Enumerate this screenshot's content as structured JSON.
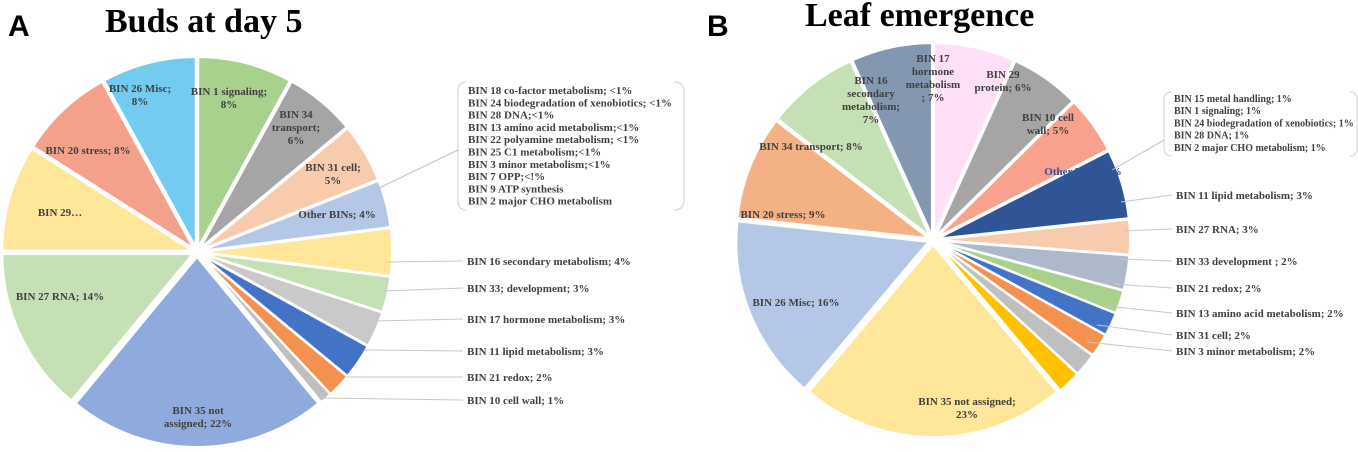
{
  "chart_data": [
    {
      "type": "pie",
      "panel": "A",
      "title": "Buds at day 5",
      "slices": [
        {
          "label": "BIN 1 signaling; 8%",
          "value": 8,
          "color": "#a9d18e"
        },
        {
          "label": "BIN 34 transport; 6%",
          "value": 6,
          "color": "#a5a5a5"
        },
        {
          "label": "BIN 31 cell; 5%",
          "value": 5,
          "color": "#f8cbad"
        },
        {
          "label": "Other BINs; 4%",
          "value": 4,
          "color": "#b4c7e7"
        },
        {
          "label": "BIN 16 secondary metabolism; 4%",
          "value": 4,
          "color": "#ffe699"
        },
        {
          "label": "BIN 33; development; 3%",
          "value": 3,
          "color": "#c5e0b4"
        },
        {
          "label": "BIN 17 hormone metabolism; 3%",
          "value": 3,
          "color": "#c9c9c9"
        },
        {
          "label": "BIN 11 lipid metabolism; 3%",
          "value": 3,
          "color": "#4472c4"
        },
        {
          "label": "BIN 21 redox; 2%",
          "value": 2,
          "color": "#f4914e"
        },
        {
          "label": "BIN 10 cell wall; 1%",
          "value": 1,
          "color": "#bfbfbf"
        },
        {
          "label": "BIN 35 not assigned; 22%",
          "value": 22,
          "color": "#8faadc"
        },
        {
          "label": "BIN 27 RNA; 14%",
          "value": 14,
          "color": "#c5e0b4"
        },
        {
          "label": "BIN 29…",
          "value": 9,
          "color": "#ffe699"
        },
        {
          "label": "BIN 20 stress; 8%",
          "value": 8,
          "color": "#f4a18c"
        },
        {
          "label": "BIN 26 Misc; 8%",
          "value": 8,
          "color": "#73ccf0"
        }
      ],
      "other_bins_box": [
        "BIN 18 co-factor metabolism; <1%",
        "BIN 24 biodegradation of xenobiotics; <1%",
        "BIN 28 DNA;<1%",
        "BIN 13 amino acid metabolism;<1%",
        "BIN 22 polyamine metabolism; <1%",
        "BIN 25 C1 metabolism;<1%",
        "BIN 3  minor metabolism;<1%",
        "BIN 7 OPP;<!%",
        "BIN 9 ATP synthesis",
        "BIN 2 major CHO  metabolism"
      ]
    },
    {
      "type": "pie",
      "panel": "B",
      "title": "Leaf emergence",
      "slices": [
        {
          "label": "BIN 17 hormone metabolism ; 7%",
          "value": 7,
          "color": "#ffe0f8"
        },
        {
          "label": "BIN 29 protein; 6%",
          "value": 6,
          "color": "#a5a5a5"
        },
        {
          "label": "BIN 10 cell wall; 5%",
          "value": 5,
          "color": "#f8a18c"
        },
        {
          "label": "Other BINs; 6%",
          "value": 6,
          "color": "#2f5597"
        },
        {
          "label": "BIN 11 lipid metabolism; 3%",
          "value": 3,
          "color": "#f8cbad"
        },
        {
          "label": "BIN 27 RNA; 3%",
          "value": 3,
          "color": "#adb9ca"
        },
        {
          "label": "BIN 33 development ; 2%",
          "value": 2,
          "color": "#a9d18e"
        },
        {
          "label": "BIN 21 redox; 2%",
          "value": 2,
          "color": "#4472c4"
        },
        {
          "label": "BIN 13 amino acid metabolism; 2%",
          "value": 2,
          "color": "#f4914e"
        },
        {
          "label": "BIN 31 cell; 2%",
          "value": 2,
          "color": "#bfbfbf"
        },
        {
          "label": "BIN 3 minor metabolism; 2%",
          "value": 2,
          "color": "#ffc000"
        },
        {
          "label": "BIN 35 not assigned; 23%",
          "value": 23,
          "color": "#ffe699"
        },
        {
          "label": "BIN 26 Misc; 16%",
          "value": 16,
          "color": "#b4c7e7"
        },
        {
          "label": "BIN 20 stress; 9%",
          "value": 9,
          "color": "#f4b183"
        },
        {
          "label": "BIN 34 transport; 8%",
          "value": 8,
          "color": "#c5e0b4"
        },
        {
          "label": "BIN 16 secondary metabolism; 7%",
          "value": 7,
          "color": "#8497b0"
        }
      ],
      "other_bins_box": [
        "BIN 15 metal handling; 1%",
        "BIN 1 signaling; 1%",
        "BIN 24 biodegradation of xenobiotics; 1%",
        "BIN 28 DNA; 1%",
        "BIN 2 major CHO  metabolism; 1%"
      ]
    }
  ]
}
